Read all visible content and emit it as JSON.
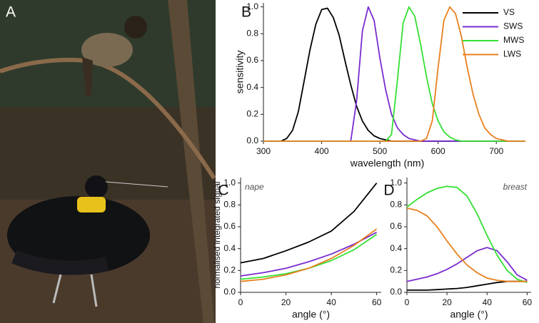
{
  "photo": {
    "label": "A"
  },
  "chart_data": [
    {
      "type": "line",
      "panel_label": "B",
      "xlabel": "wavelength (nm)",
      "ylabel": "sensitivity",
      "x": [
        300,
        310,
        320,
        330,
        340,
        350,
        360,
        370,
        380,
        390,
        400,
        410,
        420,
        430,
        440,
        450,
        460,
        470,
        480,
        490,
        500,
        510,
        520,
        530,
        540,
        550,
        560,
        570,
        580,
        590,
        600,
        610,
        620,
        630,
        640,
        650,
        660,
        670,
        680,
        690,
        700,
        710,
        720,
        730,
        740,
        750
      ],
      "series": [
        {
          "name": "VS",
          "color": "#000000",
          "values": [
            0,
            0,
            0,
            0,
            0.02,
            0.08,
            0.22,
            0.45,
            0.68,
            0.87,
            0.98,
            0.99,
            0.92,
            0.79,
            0.6,
            0.42,
            0.26,
            0.15,
            0.08,
            0.04,
            0.02,
            0.01,
            0,
            0,
            0,
            0,
            0,
            0,
            0,
            0,
            0,
            0,
            0,
            0,
            0,
            0,
            0,
            0,
            0,
            0,
            0,
            0,
            0,
            0,
            0,
            0
          ]
        },
        {
          "name": "SWS",
          "color": "#7a2bd0",
          "values": [
            0,
            0,
            0,
            0,
            0,
            0,
            0,
            0,
            0,
            0,
            0,
            0,
            0,
            0,
            0,
            0,
            0.3,
            0.82,
            1.0,
            0.9,
            0.62,
            0.38,
            0.2,
            0.1,
            0.05,
            0.02,
            0.01,
            0,
            0,
            0,
            0,
            0,
            0,
            0,
            0,
            0,
            0,
            0,
            0,
            0,
            0,
            0,
            0,
            0,
            0,
            0
          ]
        },
        {
          "name": "MWS",
          "color": "#33e033",
          "values": [
            0,
            0,
            0,
            0,
            0,
            0,
            0,
            0,
            0,
            0,
            0,
            0,
            0,
            0,
            0,
            0,
            0,
            0,
            0,
            0,
            0,
            0,
            0.05,
            0.45,
            0.88,
            1.0,
            0.93,
            0.72,
            0.48,
            0.28,
            0.15,
            0.07,
            0.03,
            0.01,
            0,
            0,
            0,
            0,
            0,
            0,
            0,
            0,
            0,
            0,
            0,
            0
          ]
        },
        {
          "name": "LWS",
          "color": "#e8801e",
          "values": [
            0,
            0,
            0,
            0,
            0,
            0,
            0,
            0,
            0,
            0,
            0,
            0,
            0,
            0,
            0,
            0,
            0,
            0,
            0,
            0,
            0,
            0,
            0,
            0,
            0,
            0,
            0,
            0,
            0.02,
            0.15,
            0.55,
            0.9,
            1.0,
            0.95,
            0.78,
            0.55,
            0.35,
            0.2,
            0.1,
            0.05,
            0.02,
            0.01,
            0,
            0,
            0,
            0
          ]
        }
      ],
      "xlim": [
        300,
        750
      ],
      "xticks": [
        300,
        400,
        500,
        600,
        700
      ],
      "ylim": [
        0,
        1.03
      ],
      "yticks": [
        {
          "value": 0,
          "label": "0.0"
        },
        0.2,
        0.4,
        0.6,
        0.8,
        {
          "value": 1,
          "label": "1.0"
        }
      ],
      "legend": "top-right"
    },
    {
      "type": "line",
      "panel_label": "C",
      "annotation": "nape",
      "xlabel": "angle (°)",
      "ylabel": "normalised integrated signal",
      "x": [
        0,
        10,
        20,
        30,
        40,
        50,
        60
      ],
      "series": [
        {
          "color": "#000000",
          "values": [
            0.27,
            0.31,
            0.38,
            0.46,
            0.56,
            0.74,
            1.0
          ]
        },
        {
          "color": "#7a2bd0",
          "values": [
            0.15,
            0.18,
            0.22,
            0.28,
            0.35,
            0.44,
            0.55
          ]
        },
        {
          "color": "#33e033",
          "values": [
            0.12,
            0.14,
            0.17,
            0.22,
            0.29,
            0.39,
            0.53
          ]
        },
        {
          "color": "#e8801e",
          "values": [
            0.1,
            0.12,
            0.16,
            0.22,
            0.31,
            0.43,
            0.58
          ]
        }
      ],
      "xlim": [
        0,
        62
      ],
      "xticks": [
        0,
        20,
        40,
        60
      ],
      "ylim": [
        0,
        1.05
      ],
      "yticks": [
        {
          "value": 0,
          "label": "0.0"
        },
        0.2,
        0.4,
        0.6,
        0.8,
        {
          "value": 1,
          "label": "1.0"
        }
      ]
    },
    {
      "type": "line",
      "panel_label": "D",
      "annotation": "breast",
      "xlabel": "angle (°)",
      "x": [
        0,
        5,
        10,
        15,
        20,
        25,
        30,
        35,
        40,
        45,
        50,
        55,
        60
      ],
      "series": [
        {
          "color": "#000000",
          "values": [
            0.02,
            0.02,
            0.02,
            0.025,
            0.03,
            0.035,
            0.045,
            0.06,
            0.075,
            0.09,
            0.1,
            0.1,
            0.1
          ]
        },
        {
          "color": "#7a2bd0",
          "values": [
            0.1,
            0.12,
            0.14,
            0.17,
            0.21,
            0.26,
            0.32,
            0.38,
            0.41,
            0.38,
            0.28,
            0.16,
            0.11
          ]
        },
        {
          "color": "#33e033",
          "values": [
            0.78,
            0.85,
            0.91,
            0.95,
            0.97,
            0.96,
            0.88,
            0.72,
            0.52,
            0.34,
            0.2,
            0.12,
            0.09
          ]
        },
        {
          "color": "#e8801e",
          "values": [
            0.77,
            0.75,
            0.7,
            0.6,
            0.47,
            0.35,
            0.25,
            0.18,
            0.13,
            0.11,
            0.1,
            0.1,
            0.1
          ]
        }
      ],
      "xlim": [
        0,
        62
      ],
      "xticks": [
        0,
        20,
        40,
        60
      ],
      "ylim": [
        0,
        1.05
      ],
      "yticks": [
        {
          "value": 0,
          "label": "0.0"
        },
        0.2,
        0.4,
        0.6,
        0.8,
        {
          "value": 1,
          "label": "1.0"
        }
      ]
    }
  ]
}
